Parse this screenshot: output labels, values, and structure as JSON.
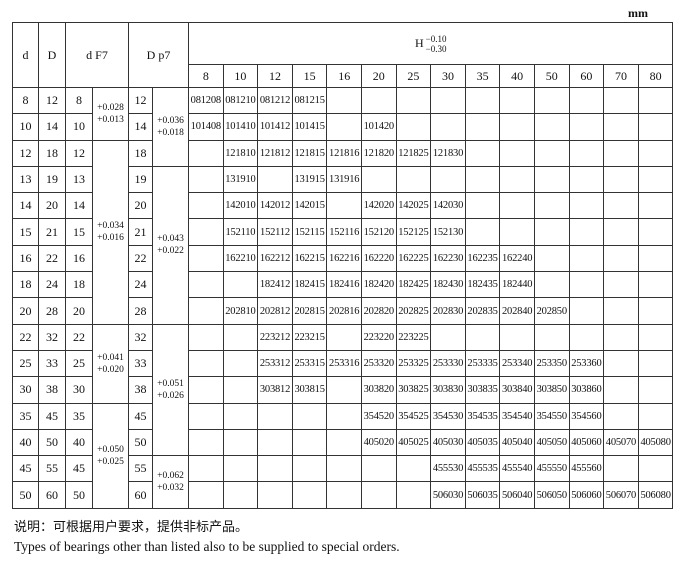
{
  "unit": "mm",
  "headers": {
    "d": "d",
    "D": "D",
    "dF7": "d F7",
    "Dp7": "D p7",
    "H": "H",
    "H_upper": "−0.10",
    "H_lower": "−0.30"
  },
  "H_values": [
    "8",
    "10",
    "12",
    "15",
    "16",
    "20",
    "25",
    "30",
    "35",
    "40",
    "50",
    "60",
    "70",
    "80"
  ],
  "dF7_tolerances": [
    {
      "rows": 2,
      "upper": "+0.028",
      "lower": "+0.013"
    },
    {
      "rows": 7,
      "upper": "+0.034",
      "lower": "+0.016"
    },
    {
      "rows": 3,
      "upper": "+0.041",
      "lower": "+0.020"
    },
    {
      "rows": 4,
      "upper": "+0.050",
      "lower": "+0.025"
    }
  ],
  "Dp7_tolerances": [
    {
      "rows": 3,
      "upper": "+0.036",
      "lower": "+0.018"
    },
    {
      "rows": 6,
      "upper": "+0.043",
      "lower": "+0.022"
    },
    {
      "rows": 5,
      "upper": "+0.051",
      "lower": "+0.026"
    },
    {
      "rows": 2,
      "upper": "+0.062",
      "lower": "+0.032"
    }
  ],
  "rows": [
    {
      "d": "8",
      "D": "12",
      "codes": [
        "081208",
        "081210",
        "081212",
        "081215",
        "",
        "",
        "",
        "",
        "",
        "",
        "",
        "",
        "",
        ""
      ]
    },
    {
      "d": "10",
      "D": "14",
      "codes": [
        "101408",
        "101410",
        "101412",
        "101415",
        "",
        "101420",
        "",
        "",
        "",
        "",
        "",
        "",
        "",
        ""
      ]
    },
    {
      "d": "12",
      "D": "18",
      "codes": [
        "",
        "121810",
        "121812",
        "121815",
        "121816",
        "121820",
        "121825",
        "121830",
        "",
        "",
        "",
        "",
        "",
        ""
      ]
    },
    {
      "d": "13",
      "D": "19",
      "codes": [
        "",
        "131910",
        "",
        "131915",
        "131916",
        "",
        "",
        "",
        "",
        "",
        "",
        "",
        "",
        ""
      ]
    },
    {
      "d": "14",
      "D": "20",
      "codes": [
        "",
        "142010",
        "142012",
        "142015",
        "",
        "142020",
        "142025",
        "142030",
        "",
        "",
        "",
        "",
        "",
        ""
      ]
    },
    {
      "d": "15",
      "D": "21",
      "codes": [
        "",
        "152110",
        "152112",
        "152115",
        "152116",
        "152120",
        "152125",
        "152130",
        "",
        "",
        "",
        "",
        "",
        ""
      ]
    },
    {
      "d": "16",
      "D": "22",
      "codes": [
        "",
        "162210",
        "162212",
        "162215",
        "162216",
        "162220",
        "162225",
        "162230",
        "162235",
        "162240",
        "",
        "",
        "",
        ""
      ]
    },
    {
      "d": "18",
      "D": "24",
      "codes": [
        "",
        "",
        "182412",
        "182415",
        "182416",
        "182420",
        "182425",
        "182430",
        "182435",
        "182440",
        "",
        "",
        "",
        ""
      ]
    },
    {
      "d": "20",
      "D": "28",
      "codes": [
        "",
        "202810",
        "202812",
        "202815",
        "202816",
        "202820",
        "202825",
        "202830",
        "202835",
        "202840",
        "202850",
        "",
        "",
        ""
      ]
    },
    {
      "d": "22",
      "D": "32",
      "codes": [
        "",
        "",
        "223212",
        "223215",
        "",
        "223220",
        "223225",
        "",
        "",
        "",
        "",
        "",
        "",
        ""
      ]
    },
    {
      "d": "25",
      "D": "33",
      "codes": [
        "",
        "",
        "253312",
        "253315",
        "253316",
        "253320",
        "253325",
        "253330",
        "253335",
        "253340",
        "253350",
        "253360",
        "",
        ""
      ]
    },
    {
      "d": "30",
      "D": "38",
      "codes": [
        "",
        "",
        "303812",
        "303815",
        "",
        "303820",
        "303825",
        "303830",
        "303835",
        "303840",
        "303850",
        "303860",
        "",
        ""
      ]
    },
    {
      "d": "35",
      "D": "45",
      "codes": [
        "",
        "",
        "",
        "",
        "",
        "354520",
        "354525",
        "354530",
        "354535",
        "354540",
        "354550",
        "354560",
        "",
        ""
      ]
    },
    {
      "d": "40",
      "D": "50",
      "codes": [
        "",
        "",
        "",
        "",
        "",
        "405020",
        "405025",
        "405030",
        "405035",
        "405040",
        "405050",
        "405060",
        "405070",
        "405080"
      ]
    },
    {
      "d": "45",
      "D": "55",
      "codes": [
        "",
        "",
        "",
        "",
        "",
        "",
        "",
        "455530",
        "455535",
        "455540",
        "455550",
        "455560",
        "",
        ""
      ]
    },
    {
      "d": "50",
      "D": "60",
      "codes": [
        "",
        "",
        "",
        "",
        "",
        "",
        "",
        "506030",
        "506035",
        "506040",
        "506050",
        "506060",
        "506070",
        "506080"
      ]
    }
  ],
  "notes": {
    "cn": "说明：可根据用户要求，提供非标产品。",
    "en": "Types of bearings other than listed also to be supplied to special orders."
  }
}
